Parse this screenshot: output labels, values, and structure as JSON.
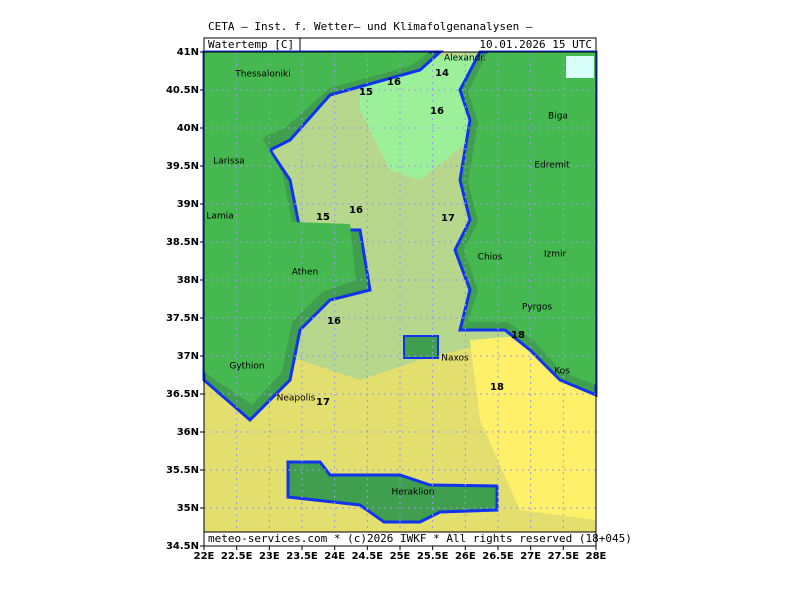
{
  "header": {
    "title": "CETA — Inst. f. Wetter— und Klimafolgenanalysen —",
    "variable": "Watertemp [C]",
    "valid_time": "10.01.2026 15 UTC"
  },
  "footer": "meteo-services.com * (c)2026 IWKF * All rights reserved (18+045)",
  "map": {
    "xlim": [
      22,
      28
    ],
    "ylim": [
      34.5,
      41
    ],
    "xticks": [
      {
        "value": 22,
        "label": "22E"
      },
      {
        "value": 22.5,
        "label": "22.5E"
      },
      {
        "value": 23,
        "label": "23E"
      },
      {
        "value": 23.5,
        "label": "23.5E"
      },
      {
        "value": 24,
        "label": "24E"
      },
      {
        "value": 24.5,
        "label": "24.5E"
      },
      {
        "value": 25,
        "label": "25E"
      },
      {
        "value": 25.5,
        "label": "25.5E"
      },
      {
        "value": 26,
        "label": "26E"
      },
      {
        "value": 26.5,
        "label": "26.5E"
      },
      {
        "value": 27,
        "label": "27E"
      },
      {
        "value": 27.5,
        "label": "27.5E"
      },
      {
        "value": 28,
        "label": "28E"
      }
    ],
    "yticks": [
      {
        "value": 34.5,
        "label": "34.5N"
      },
      {
        "value": 35,
        "label": "35N"
      },
      {
        "value": 35.5,
        "label": "35.5N"
      },
      {
        "value": 36,
        "label": "36N"
      },
      {
        "value": 36.5,
        "label": "36.5N"
      },
      {
        "value": 37,
        "label": "37N"
      },
      {
        "value": 37.5,
        "label": "37.5N"
      },
      {
        "value": 38,
        "label": "38N"
      },
      {
        "value": 38.5,
        "label": "38.5N"
      },
      {
        "value": 39,
        "label": "39N"
      },
      {
        "value": 39.5,
        "label": "39.5N"
      },
      {
        "value": 40,
        "label": "40N"
      },
      {
        "value": 40.5,
        "label": "40.5N"
      },
      {
        "value": 41,
        "label": "41N"
      }
    ],
    "grid": true,
    "places": [
      "Thessaloniki",
      "Alexandr.",
      "Biga",
      "Larissa",
      "Edremit",
      "Lamia",
      "Izmir",
      "Chios",
      "Athen",
      "Pyrgos",
      "Naxos",
      "Gythion",
      "Kos",
      "Neapolis",
      "Heraklion"
    ],
    "contour_labels": [
      14,
      16,
      15,
      16,
      15,
      16,
      17,
      16,
      18,
      18,
      17
    ]
  }
}
